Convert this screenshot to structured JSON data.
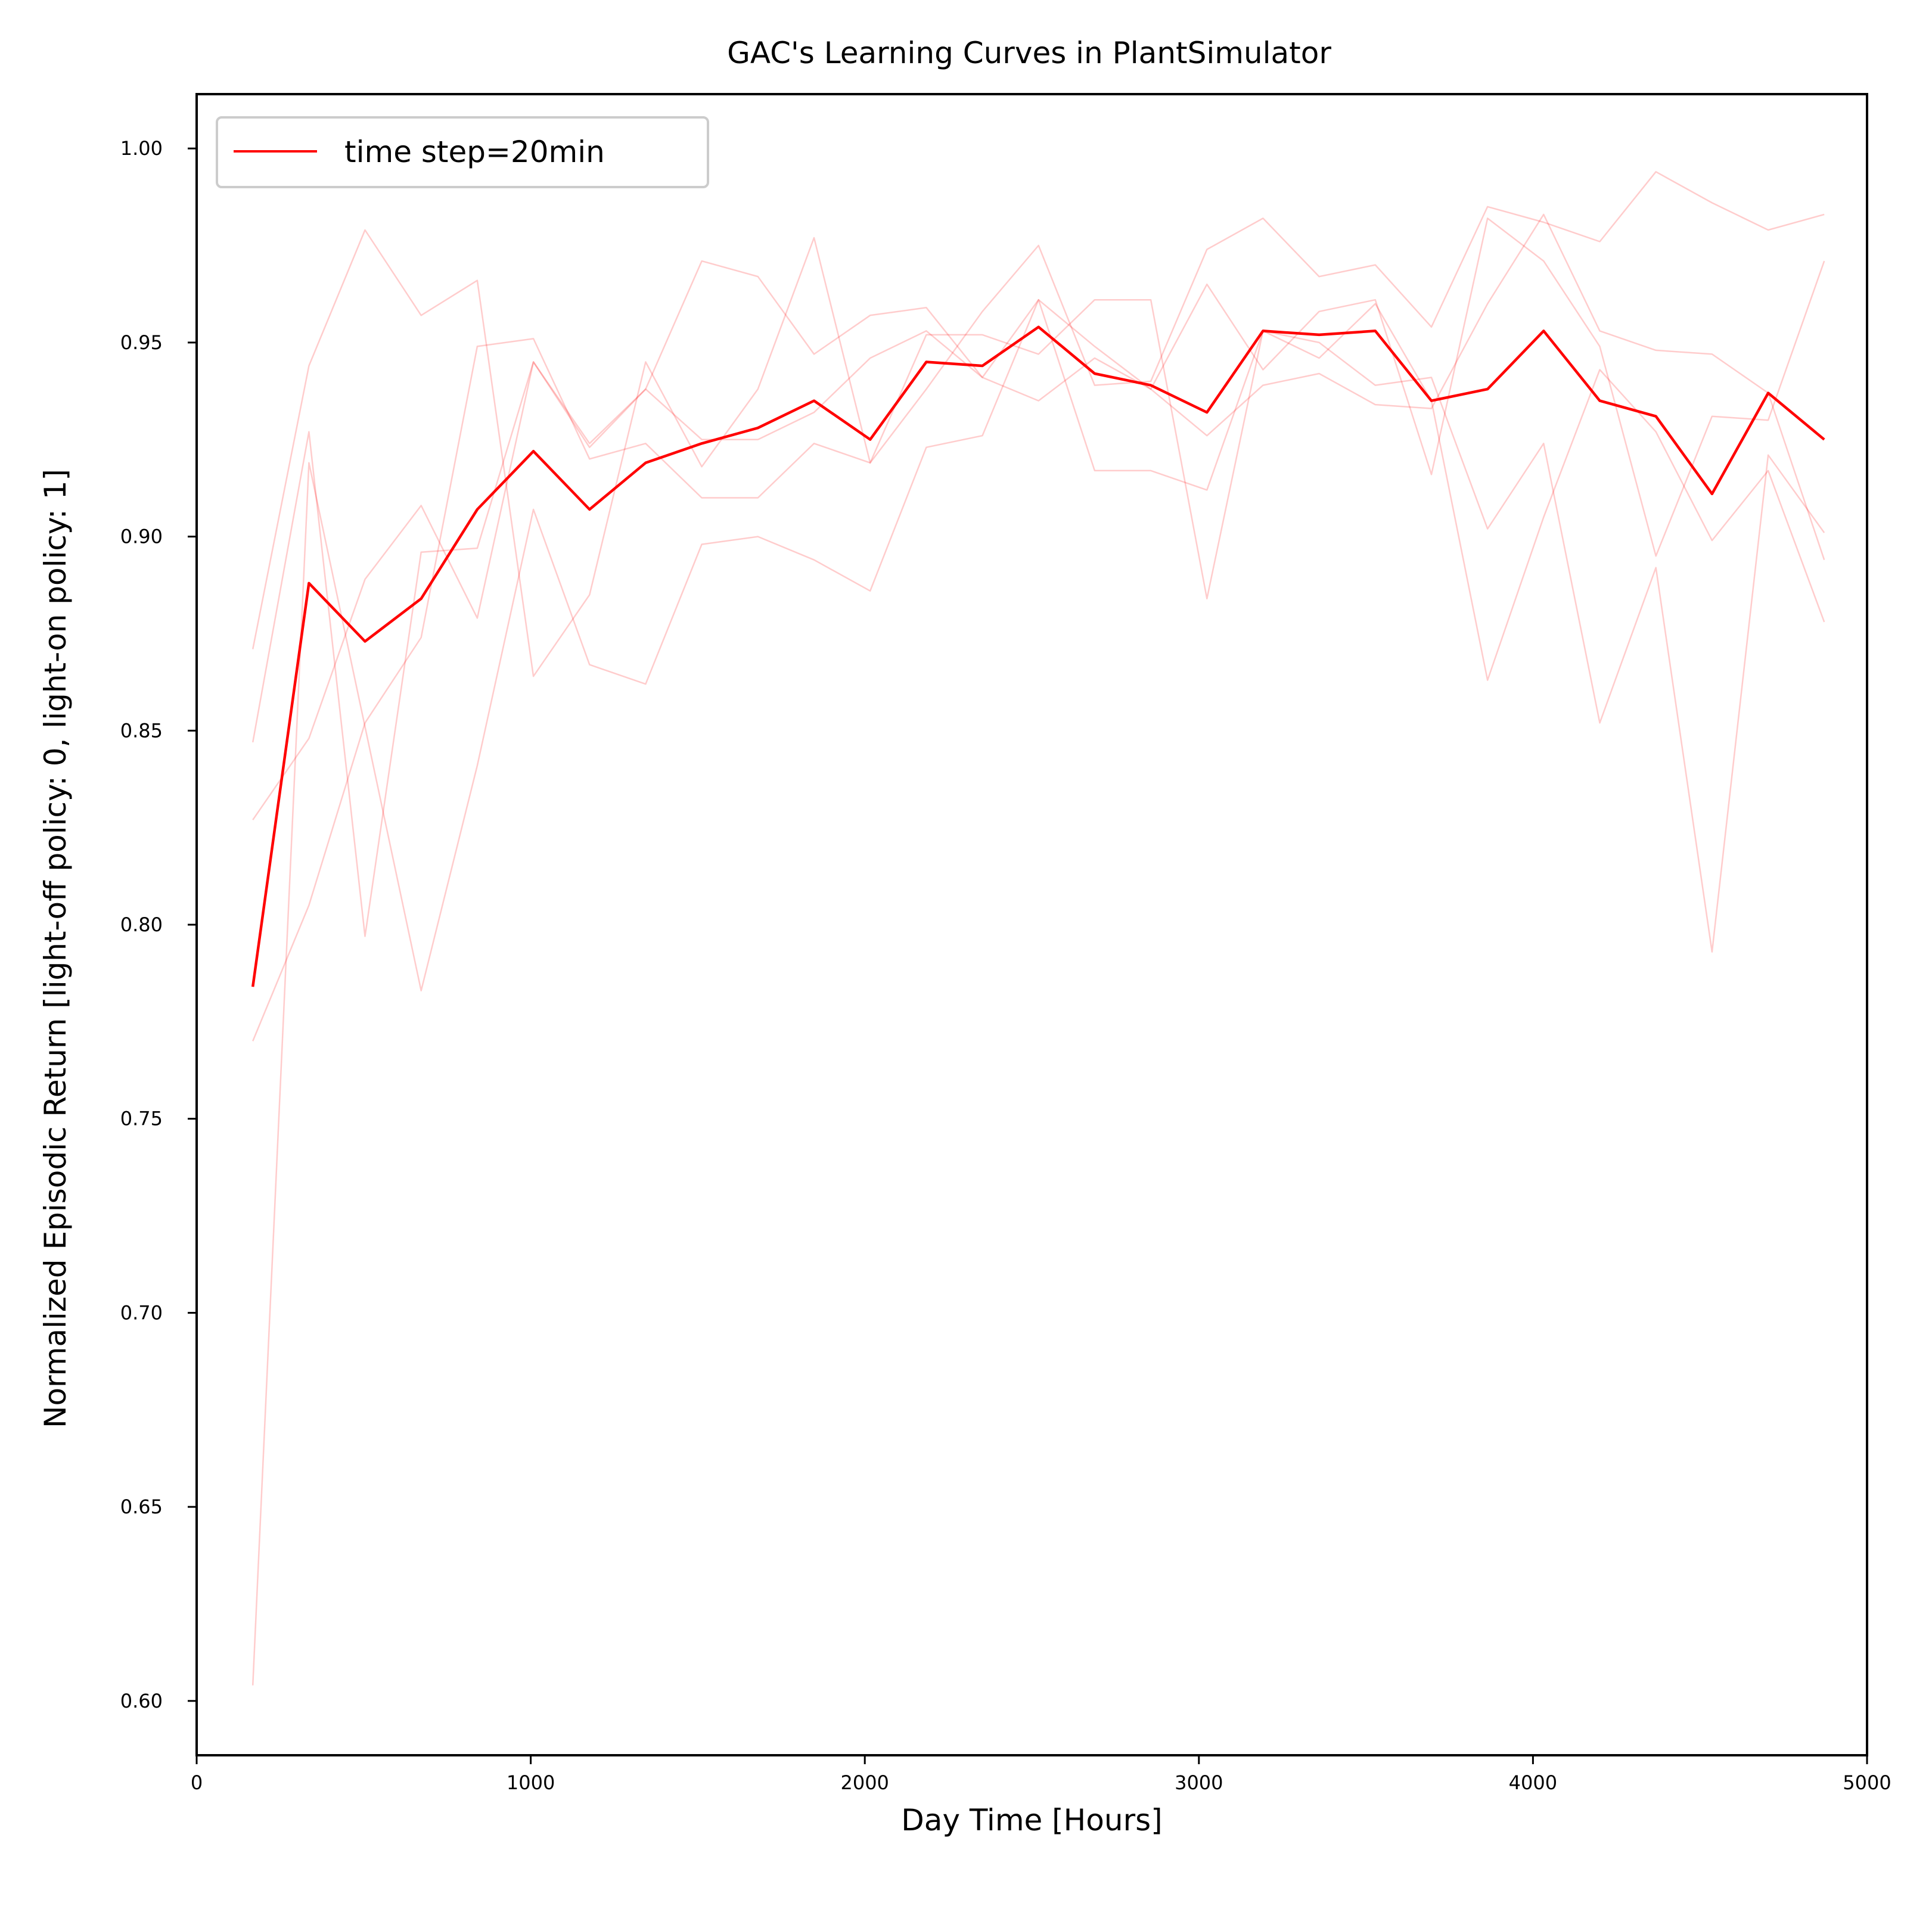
{
  "chart_data": {
    "type": "line",
    "title": "GAC's Learning Curves in PlantSimulator",
    "xlabel": "Day Time [Hours]",
    "ylabel": "Normalized Episodic Return [light-off policy: 0, light-on policy: 1]",
    "xlim": [
      0,
      5000
    ],
    "ylim": [
      0.586,
      1.014
    ],
    "xticks": [
      0,
      1000,
      2000,
      3000,
      4000,
      5000
    ],
    "xtick_labels": [
      "0",
      "1000",
      "2000",
      "3000",
      "4000",
      "5000"
    ],
    "yticks": [
      0.6,
      0.65,
      0.7,
      0.75,
      0.8,
      0.85,
      0.9,
      0.95,
      1.0
    ],
    "ytick_labels": [
      "0.60",
      "0.65",
      "0.70",
      "0.75",
      "0.80",
      "0.85",
      "0.90",
      "0.95",
      "1.00"
    ],
    "grid": false,
    "legend_position": "top-left",
    "legend": [
      "time step=20min"
    ],
    "x": [
      168,
      336,
      504,
      672,
      840,
      1008,
      1176,
      1344,
      1512,
      1680,
      1848,
      2016,
      2184,
      2352,
      2520,
      2688,
      2856,
      3024,
      3192,
      3360,
      3528,
      3696,
      3864,
      4032,
      4200,
      4368,
      4536,
      4704,
      4872
    ],
    "series": [
      {
        "name": "time step=20min",
        "color": "#ff0000",
        "role": "mean",
        "values": [
          0.784,
          0.888,
          0.873,
          0.884,
          0.907,
          0.922,
          0.907,
          0.919,
          0.924,
          0.928,
          0.935,
          0.925,
          0.945,
          0.944,
          0.954,
          0.942,
          0.939,
          0.932,
          0.953,
          0.952,
          0.953,
          0.935,
          0.938,
          0.953,
          0.935,
          0.931,
          0.911,
          0.937,
          0.925
        ]
      },
      {
        "color": "#ff0000",
        "role": "run",
        "values": [
          0.871,
          0.944,
          0.979,
          0.957,
          0.966,
          0.864,
          0.885,
          0.945,
          0.918,
          0.938,
          0.977,
          0.919,
          0.938,
          0.958,
          0.975,
          0.939,
          0.94,
          0.974,
          0.982,
          0.967,
          0.97,
          0.954,
          0.985,
          0.981,
          0.976,
          0.994,
          0.986,
          0.979,
          0.983
        ]
      },
      {
        "color": "#ff0000",
        "role": "run",
        "values": [
          0.847,
          0.927,
          0.797,
          0.896,
          0.897,
          0.945,
          0.924,
          0.938,
          0.925,
          0.925,
          0.932,
          0.946,
          0.953,
          0.941,
          0.961,
          0.949,
          0.938,
          0.965,
          0.943,
          0.958,
          0.961,
          0.916,
          0.982,
          0.971,
          0.949,
          0.895,
          0.931,
          0.93,
          0.971
        ]
      },
      {
        "color": "#ff0000",
        "role": "run",
        "values": [
          0.827,
          0.848,
          0.889,
          0.908,
          0.879,
          0.945,
          0.923,
          0.938,
          0.971,
          0.967,
          0.947,
          0.957,
          0.959,
          0.941,
          0.935,
          0.946,
          0.938,
          0.926,
          0.939,
          0.942,
          0.934,
          0.933,
          0.96,
          0.983,
          0.953,
          0.948,
          0.947,
          0.937,
          0.894
        ]
      },
      {
        "color": "#ff0000",
        "role": "run",
        "values": [
          0.77,
          0.805,
          0.852,
          0.874,
          0.949,
          0.951,
          0.92,
          0.924,
          0.91,
          0.91,
          0.924,
          0.919,
          0.952,
          0.952,
          0.947,
          0.961,
          0.961,
          0.884,
          0.953,
          0.95,
          0.939,
          0.941,
          0.902,
          0.924,
          0.852,
          0.892,
          0.793,
          0.921,
          0.901
        ]
      },
      {
        "color": "#ff0000",
        "role": "run",
        "values": [
          0.604,
          0.919,
          0.851,
          0.783,
          0.841,
          0.907,
          0.867,
          0.862,
          0.898,
          0.9,
          0.894,
          0.886,
          0.923,
          0.926,
          0.961,
          0.917,
          0.917,
          0.912,
          0.953,
          0.946,
          0.96,
          0.935,
          0.863,
          0.905,
          0.943,
          0.927,
          0.899,
          0.917,
          0.878
        ]
      }
    ]
  }
}
